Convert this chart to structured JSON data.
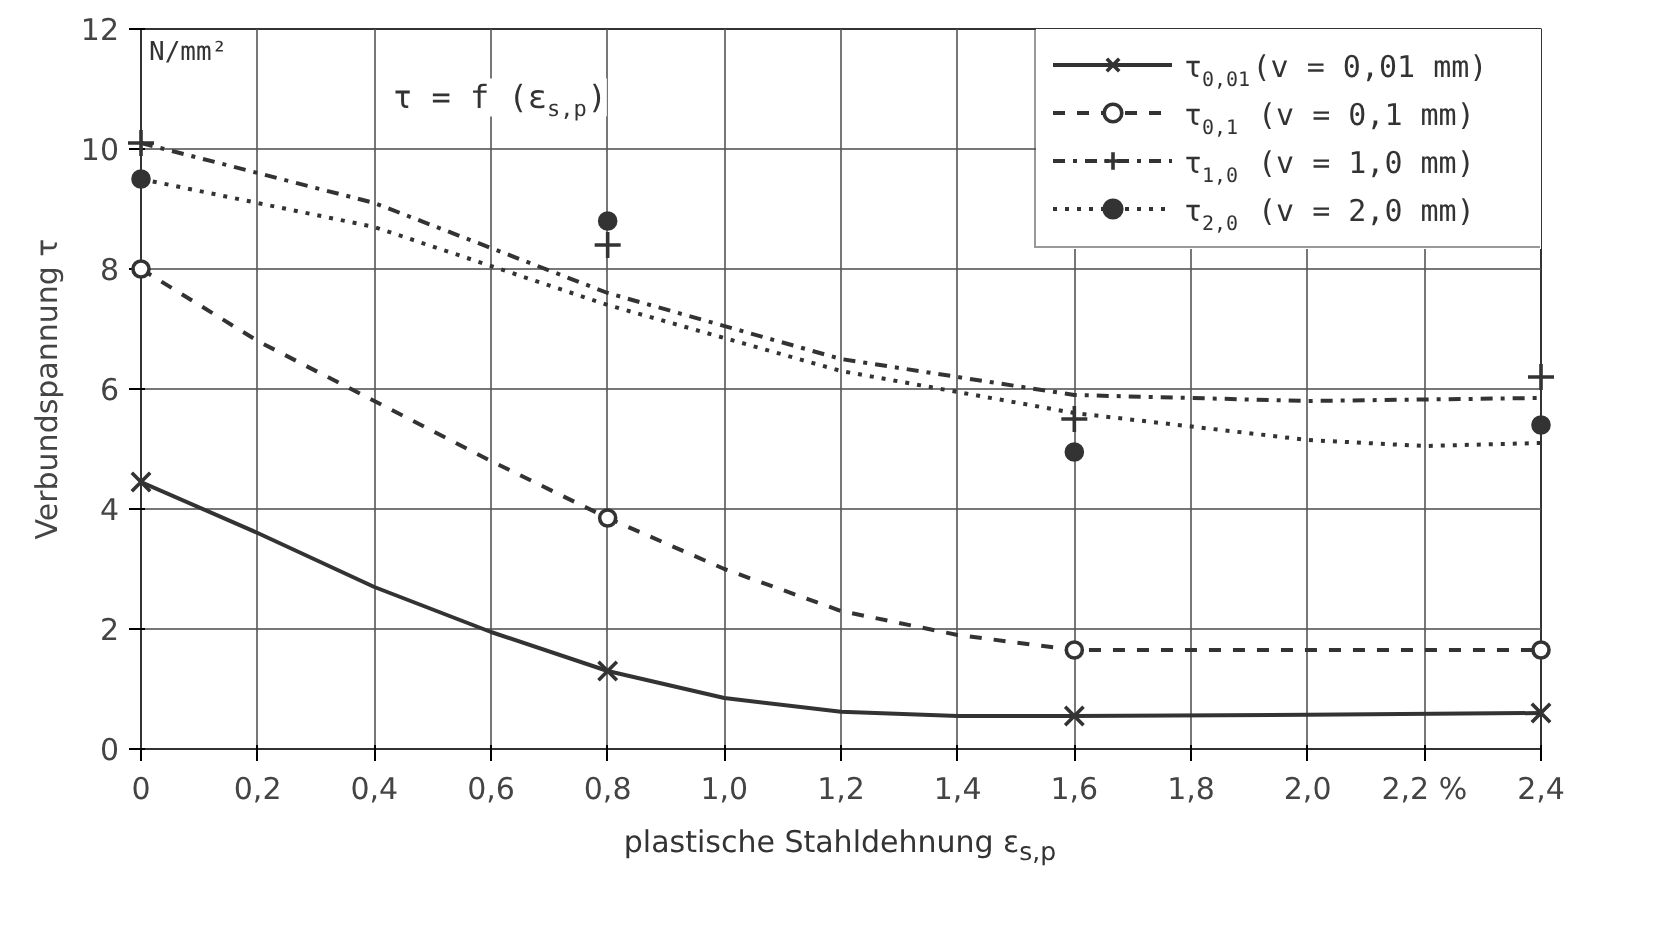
{
  "chart_data": {
    "type": "line",
    "xlabel": "plastische Stahldehnung ε$_{s,p}$",
    "ylabel": "Verbundspannung τ",
    "annotations": [
      "τ = f (ε$_{s,p}$)",
      "N/mm²"
    ],
    "xlim": [
      0,
      2.4
    ],
    "ylim": [
      0,
      12
    ],
    "xticks": [
      0,
      {
        "value": 0.2,
        "label": "0,2"
      },
      {
        "value": 0.4,
        "label": "0,4"
      },
      {
        "value": 0.6,
        "label": "0,6"
      },
      {
        "value": 0.8,
        "label": "0,8"
      },
      {
        "value": 1.0,
        "label": "1,0"
      },
      {
        "value": 1.2,
        "label": "1,2"
      },
      {
        "value": 1.4,
        "label": "1,4"
      },
      {
        "value": 1.6,
        "label": "1,6"
      },
      {
        "value": 1.8,
        "label": "1,8"
      },
      {
        "value": 2.0,
        "label": "2,0"
      },
      {
        "value": 2.2,
        "label": "2,2 %"
      },
      {
        "value": 2.4,
        "label": "2,4"
      }
    ],
    "yticks": [
      0,
      2,
      4,
      6,
      8,
      10,
      12
    ],
    "grid": true,
    "legend": "top right",
    "series": [
      {
        "name": "τ$_{0,01}$(v = 0,01 mm)",
        "color": "#333333",
        "line_style": "solid",
        "x": [
          0,
          0.2,
          0.4,
          0.6,
          0.8,
          1.0,
          1.2,
          1.4,
          1.6,
          2.0,
          2.4
        ],
        "values": [
          4.45,
          3.6,
          2.7,
          1.95,
          1.3,
          0.85,
          0.62,
          0.55,
          0.55,
          0.57,
          0.6
        ]
      },
      {
        "type": "scatter",
        "color": "#333333",
        "marker": "x",
        "x": [
          0,
          0.8,
          1.6,
          2.4
        ],
        "values": [
          4.45,
          1.3,
          0.55,
          0.6
        ]
      },
      {
        "name": "τ$_{0,1}$ (v = 0,1 mm)",
        "color": "#333333",
        "line_style": "dashed",
        "x": [
          0,
          0.2,
          0.4,
          0.6,
          0.8,
          1.0,
          1.2,
          1.4,
          1.6,
          2.0,
          2.4
        ],
        "values": [
          8.0,
          6.8,
          5.8,
          4.8,
          3.85,
          3.0,
          2.3,
          1.9,
          1.65,
          1.65,
          1.65
        ]
      },
      {
        "type": "scatter",
        "color": "#333333",
        "marker": "circle_open",
        "x": [
          0,
          0.8,
          1.6,
          2.4
        ],
        "values": [
          8.0,
          3.85,
          1.65,
          1.65
        ]
      },
      {
        "name": "τ$_{1,0}$ (v = 1,0 mm)",
        "color": "#333333",
        "line_style": "dashdot",
        "x": [
          0,
          0.4,
          0.8,
          1.2,
          1.6,
          2.0,
          2.4
        ],
        "values": [
          10.1,
          9.1,
          7.6,
          6.5,
          5.9,
          5.8,
          5.85
        ]
      },
      {
        "type": "scatter",
        "color": "#333333",
        "marker": "cross",
        "x": [
          0,
          0.8,
          1.6,
          2.4
        ],
        "values": [
          10.1,
          8.4,
          5.5,
          6.2
        ]
      },
      {
        "name": "τ$_{2,0}$ (v = 2,0 mm)",
        "color": "#333333",
        "line_style": "dotted",
        "x": [
          0,
          0.4,
          0.8,
          1.2,
          1.6,
          2.0,
          2.2,
          2.4
        ],
        "values": [
          9.5,
          8.7,
          7.4,
          6.3,
          5.6,
          5.15,
          5.05,
          5.1
        ]
      },
      {
        "type": "scatter",
        "color": "#333333",
        "marker": "circle",
        "x": [
          0,
          0.8,
          1.6,
          2.4
        ],
        "values": [
          9.5,
          8.8,
          4.95,
          5.4
        ]
      }
    ]
  }
}
